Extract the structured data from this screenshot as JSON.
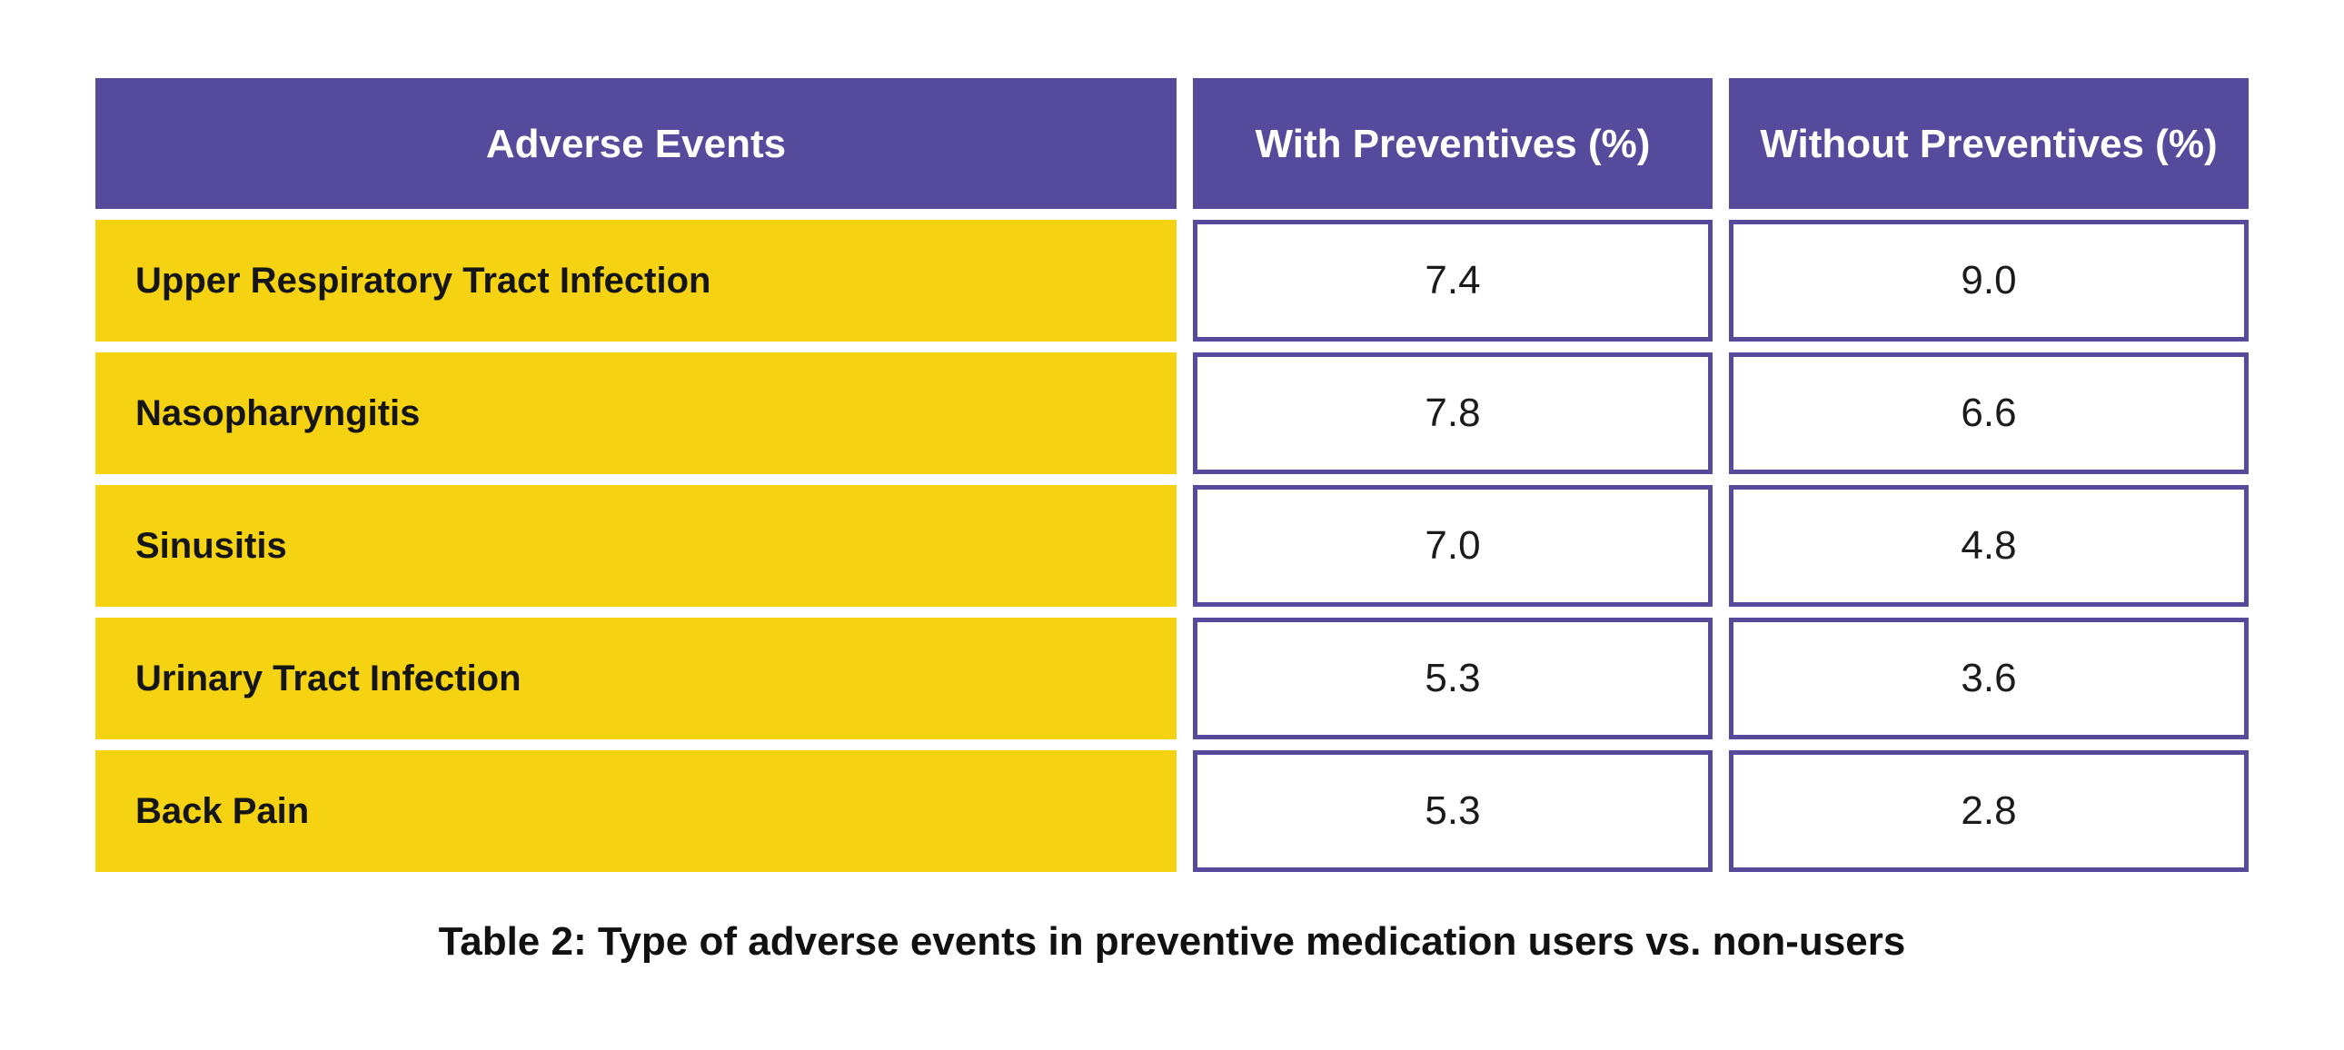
{
  "colors": {
    "page_bg": "#ffffff",
    "header_bg": "#564A9C",
    "header_text": "#ffffff",
    "row_bg": "#F5D312",
    "row_text": "#151515",
    "cell_bg": "#ffffff",
    "cell_border": "#564A9C",
    "value_text": "#1b1b1b",
    "caption_text": "#111111"
  },
  "table": {
    "columns": [
      "Adverse Events",
      "With Preventives (%)",
      "Without Preventives (%)"
    ],
    "rows": [
      {
        "event": "Upper Respiratory Tract Infection",
        "with_preventives": "7.4",
        "without_preventives": "9.0"
      },
      {
        "event": "Nasopharyngitis",
        "with_preventives": "7.8",
        "without_preventives": "6.6"
      },
      {
        "event": "Sinusitis",
        "with_preventives": "7.0",
        "without_preventives": "4.8"
      },
      {
        "event": "Urinary Tract Infection",
        "with_preventives": "5.3",
        "without_preventives": "3.6"
      },
      {
        "event": "Back Pain",
        "with_preventives": "5.3",
        "without_preventives": "2.8"
      }
    ]
  },
  "caption": "Table 2: Type of adverse events in preventive medication users vs. non-users",
  "chart_data": {
    "type": "table",
    "title": "Table 2: Type of adverse events in preventive medication users vs. non-users",
    "columns": [
      "Adverse Events",
      "With Preventives (%)",
      "Without Preventives (%)"
    ],
    "rows": [
      [
        "Upper Respiratory Tract Infection",
        7.4,
        9.0
      ],
      [
        "Nasopharyngitis",
        7.8,
        6.6
      ],
      [
        "Sinusitis",
        7.0,
        4.8
      ],
      [
        "Urinary Tract Infection",
        5.3,
        3.6
      ],
      [
        "Back Pain",
        5.3,
        2.8
      ]
    ],
    "layout": {
      "header_style": "purple background, white bold text",
      "row_label_style": "yellow background, black bold text",
      "value_cell_style": "white background, purple border, centered",
      "caption_position": "bottom center"
    }
  }
}
